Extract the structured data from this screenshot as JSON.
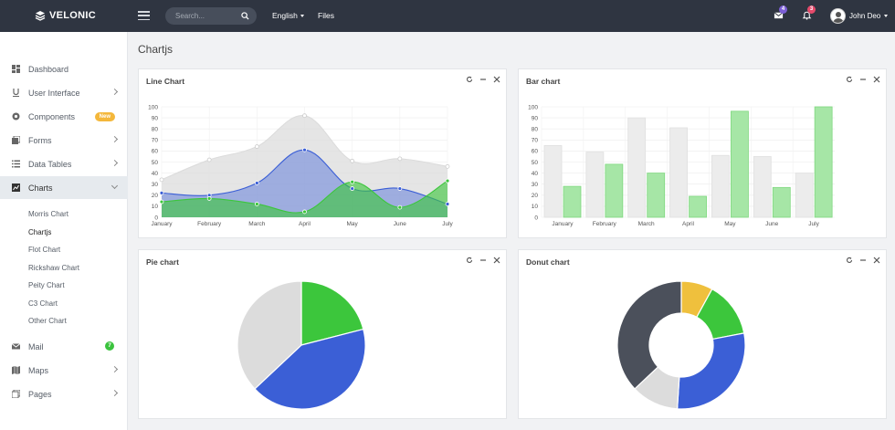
{
  "brand": {
    "name": "VELONIC"
  },
  "topbar": {
    "search_placeholder": "Search...",
    "language": "English",
    "files": "Files",
    "mail_count": "4",
    "notif_count": "3",
    "user_name": "John Deo"
  },
  "sidebar": {
    "items": [
      {
        "label": "Dashboard",
        "icon": "dashboard-icon"
      },
      {
        "label": "User Interface",
        "icon": "underline-icon"
      },
      {
        "label": "Components",
        "icon": "components-icon",
        "badge": "New"
      },
      {
        "label": "Forms",
        "icon": "forms-icon"
      },
      {
        "label": "Data Tables",
        "icon": "list-icon"
      },
      {
        "label": "Charts",
        "icon": "chart-icon"
      },
      {
        "label": "Mail",
        "icon": "mail-icon",
        "badge": "7"
      },
      {
        "label": "Maps",
        "icon": "map-icon"
      },
      {
        "label": "Pages",
        "icon": "pages-icon"
      }
    ],
    "chart_sub": [
      "Morris Chart",
      "Chartjs",
      "Flot Chart",
      "Rickshaw Chart",
      "Peity Chart",
      "C3 Chart",
      "Other Chart"
    ]
  },
  "page": {
    "title": "Chartjs"
  },
  "cards": {
    "line": {
      "title": "Line Chart"
    },
    "bar": {
      "title": "Bar chart"
    },
    "pie": {
      "title": "Pie chart"
    },
    "donut": {
      "title": "Donut chart"
    }
  },
  "colors": {
    "gray_fill": "#e6e6e6",
    "blue": "#3b5fd6",
    "green": "#3cc63c",
    "yellow": "#efc03d",
    "dark": "#4b505b",
    "light_gray": "#dcdcdc"
  },
  "chart_data": [
    {
      "type": "area",
      "title": "Line Chart",
      "categories": [
        "January",
        "February",
        "March",
        "April",
        "May",
        "June",
        "July"
      ],
      "ylim": [
        0,
        100
      ],
      "yticks": [
        "0",
        "10",
        "20",
        "30",
        "40",
        "50",
        "60",
        "70",
        "80",
        "90",
        "100"
      ],
      "series": [
        {
          "values": [
            34,
            52,
            64,
            92,
            51,
            53,
            46
          ],
          "color": "#dcdcdc"
        },
        {
          "values": [
            22,
            20,
            31,
            61,
            26,
            26,
            12
          ],
          "color": "#3b5fd6"
        },
        {
          "values": [
            14,
            17,
            12,
            5,
            32,
            9,
            33
          ],
          "color": "#3cc63c"
        }
      ]
    },
    {
      "type": "bar",
      "title": "Bar chart",
      "categories": [
        "January",
        "February",
        "March",
        "April",
        "May",
        "June",
        "July"
      ],
      "ylim": [
        0,
        100
      ],
      "yticks": [
        "0",
        "10",
        "20",
        "30",
        "40",
        "50",
        "60",
        "70",
        "80",
        "90",
        "100"
      ],
      "series": [
        {
          "values": [
            65,
            59,
            90,
            81,
            56,
            55,
            40
          ],
          "color": "#ececec"
        },
        {
          "values": [
            28,
            48,
            40,
            19,
            96,
            27,
            100
          ],
          "color": "#a6e6a6"
        }
      ]
    },
    {
      "type": "pie",
      "title": "Pie chart",
      "values": [
        21,
        42,
        37
      ],
      "colors": [
        "#3cc63c",
        "#3b5fd6",
        "#dcdcdc"
      ]
    },
    {
      "type": "pie",
      "title": "Donut chart",
      "donut": true,
      "values": [
        8,
        14,
        29,
        12,
        37
      ],
      "colors": [
        "#efc03d",
        "#3cc63c",
        "#3b5fd6",
        "#dcdcdc",
        "#4b505b"
      ]
    }
  ]
}
